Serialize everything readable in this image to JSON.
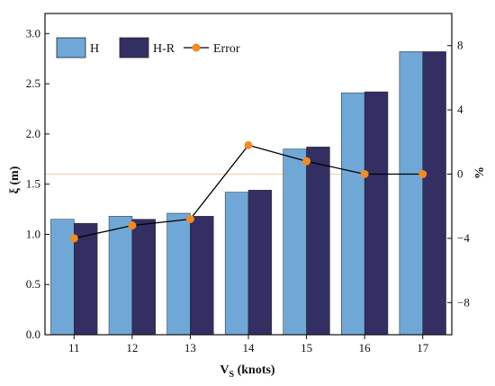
{
  "chart_data": {
    "type": "bar",
    "xlabel_main": "V",
    "xlabel_sub": "S",
    "xlabel_unit": " (knots)",
    "ylabel": "ξ (m)",
    "y2label": "%",
    "categories": [
      "11",
      "12",
      "13",
      "14",
      "15",
      "16",
      "17"
    ],
    "ylim": [
      0,
      3.2
    ],
    "y_ticks": [
      "0.0",
      "0.5",
      "1.0",
      "1.5",
      "2.0",
      "2.5",
      "3.0"
    ],
    "y2lim": [
      -10,
      10
    ],
    "y2_ticks": [
      "−8",
      "−4",
      "0",
      "4",
      "8"
    ],
    "series": [
      {
        "name": "H",
        "type": "bar",
        "color": "#6fa8d6",
        "values": [
          1.15,
          1.18,
          1.21,
          1.42,
          1.85,
          2.41,
          2.82
        ]
      },
      {
        "name": "H-R",
        "type": "bar",
        "color": "#332f62",
        "values": [
          1.11,
          1.15,
          1.18,
          1.44,
          1.87,
          2.42,
          2.82
        ]
      },
      {
        "name": "Error",
        "type": "line",
        "axis": "right",
        "marker_color": "#f28c1e",
        "line_color": "#000000",
        "values": [
          -4.0,
          -3.2,
          -2.8,
          1.8,
          0.8,
          0.0,
          0.0
        ]
      }
    ],
    "reference_line": {
      "axis": "right",
      "value": 0,
      "color": "#f4c9a6"
    },
    "legend_position": "top-left",
    "grid": false
  }
}
